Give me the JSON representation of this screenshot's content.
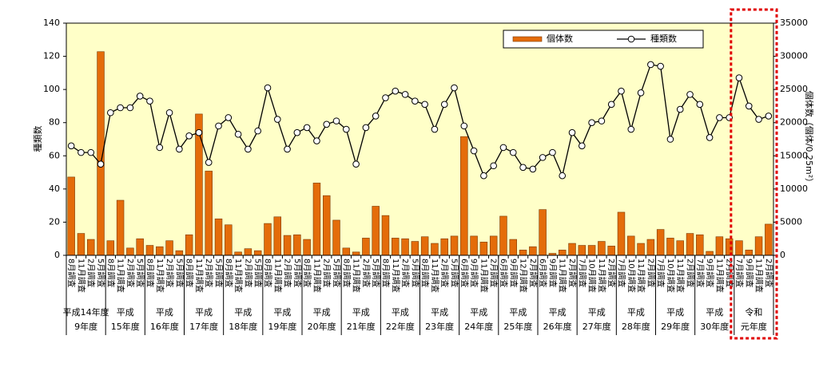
{
  "chart_data": {
    "type": "combo",
    "y_label": "種類数",
    "y2_label": "個体数（個体/0.25m²）",
    "ylim": [
      0,
      140
    ],
    "yticks": [
      0,
      20,
      40,
      60,
      80,
      100,
      120,
      140
    ],
    "y2lim": [
      0,
      35000
    ],
    "y2ticks": [
      0,
      5000,
      10000,
      15000,
      20000,
      25000,
      30000,
      35000
    ],
    "legend": "top-right",
    "background": "#ffffc8",
    "categories": [
      "8月調査",
      "11月調査",
      "2月調査",
      "5月調査",
      "8月調査",
      "11月調査",
      "2月調査",
      "5月調査",
      "8月調査",
      "11月調査",
      "2月調査",
      "5月調査",
      "8月調査",
      "11月調査",
      "2月調査",
      "5月調査",
      "8月調査",
      "11月調査",
      "2月調査",
      "5月調査",
      "8月調査",
      "11月調査",
      "2月調査",
      "5月調査",
      "8月調査",
      "11月調査",
      "2月調査",
      "5月調査",
      "8月調査",
      "11月調査",
      "2月調査",
      "5月調査",
      "8月調査",
      "11月調査",
      "2月調査",
      "5月調査",
      "8月調査",
      "11月調査",
      "2月調査",
      "5月調査",
      "6月調査",
      "9月調査",
      "11月調査",
      "2月調査",
      "6月調査",
      "9月調査",
      "12月調査",
      "2月調査",
      "6月調査",
      "9月調査",
      "11月調査",
      "2月調査",
      "7月調査",
      "10月調査",
      "11月調査",
      "2月調査",
      "7月調査",
      "10月調査",
      "11月調査",
      "2月調査",
      "7月調査",
      "10月調査",
      "11月調査",
      "2月調査",
      "7月調査",
      "9月調査",
      "11月調査",
      "2月調査",
      "7月調査",
      "9月調査",
      "11月調査",
      "2月調査"
    ],
    "groups": [
      [
        "平成14年度",
        "9年度"
      ],
      [
        "平成",
        "15年度"
      ],
      [
        "平成",
        "16年度"
      ],
      [
        "平成",
        "17年度"
      ],
      [
        "平成",
        "18年度"
      ],
      [
        "平成",
        "19年度"
      ],
      [
        "平成",
        "20年度"
      ],
      [
        "平成",
        "21年度"
      ],
      [
        "平成",
        "22年度"
      ],
      [
        "平成",
        "23年度"
      ],
      [
        "平成",
        "24年度"
      ],
      [
        "平成",
        "25年度"
      ],
      [
        "平成",
        "26年度"
      ],
      [
        "平成",
        "27年度"
      ],
      [
        "平成",
        "28年度"
      ],
      [
        "平成",
        "29年度"
      ],
      [
        "平成",
        "30年度"
      ],
      [
        "令和",
        "元年度"
      ]
    ],
    "series": [
      {
        "name": "個体数",
        "type": "bar",
        "axis": "y2",
        "color": "#e46c0a",
        "values": [
          11800,
          3300,
          2400,
          30700,
          2200,
          8300,
          1100,
          2500,
          1500,
          1300,
          2200,
          700,
          3100,
          21300,
          12700,
          5500,
          4600,
          500,
          1000,
          700,
          4800,
          5800,
          3000,
          3100,
          2400,
          10900,
          9000,
          5300,
          1100,
          500,
          2600,
          7400,
          6000,
          2600,
          2500,
          2100,
          2800,
          1800,
          2500,
          2900,
          17900,
          2900,
          2000,
          2900,
          5900,
          2400,
          800,
          1300,
          6900,
          300,
          800,
          1800,
          1500,
          1500,
          2100,
          1400,
          6500,
          2900,
          1800,
          2400,
          3900,
          2600,
          2200,
          3300,
          3100,
          600,
          2800,
          2500,
          2200,
          800,
          2800,
          4700
        ]
      },
      {
        "name": "種類数",
        "type": "line",
        "axis": "y",
        "color": "#000000",
        "values": [
          66,
          62,
          62,
          55,
          86,
          89,
          89,
          96,
          93,
          65,
          86,
          64,
          72,
          74,
          56,
          78,
          83,
          73,
          64,
          75,
          101,
          82,
          64,
          74,
          77,
          69,
          79,
          81,
          76,
          55,
          77,
          84,
          95,
          99,
          97,
          93,
          91,
          76,
          91,
          101,
          78,
          63,
          48,
          54,
          65,
          62,
          53,
          52,
          59,
          62,
          48,
          74,
          66,
          80,
          81,
          91,
          99,
          76,
          98,
          115,
          114,
          70,
          88,
          97,
          91,
          71,
          83,
          83,
          107,
          90,
          82,
          84
        ]
      }
    ]
  }
}
